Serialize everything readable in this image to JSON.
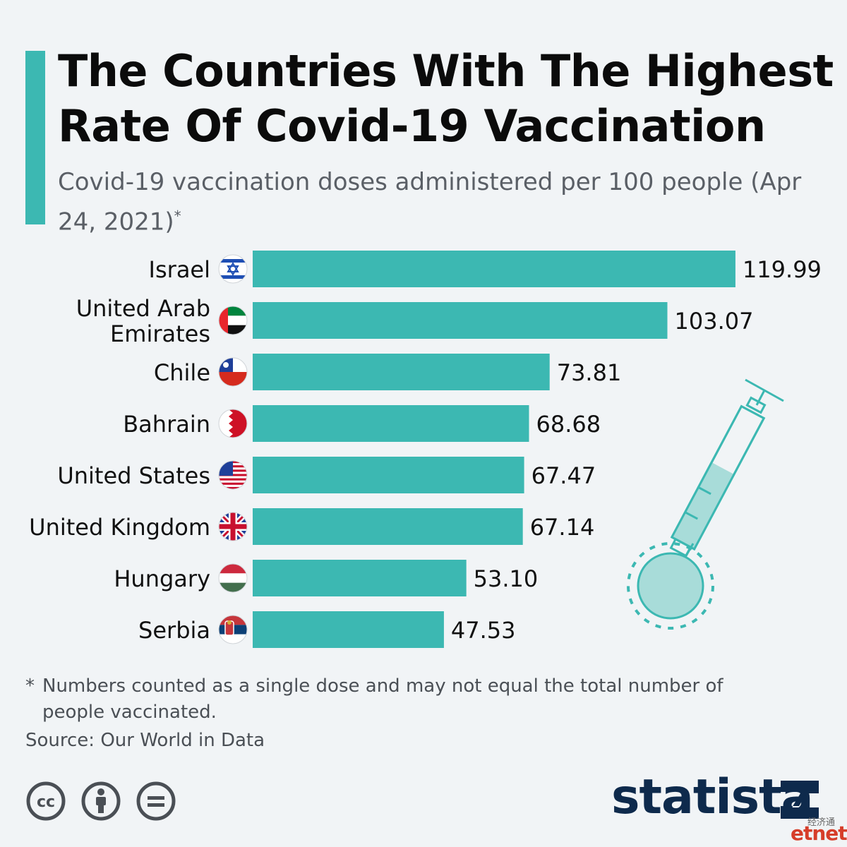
{
  "header": {
    "title": "The Countries With The Highest Rate Of Covid-19 Vaccination",
    "subtitle": "Covid-19 vaccination doses administered per 100 people (Apr 24, 2021)",
    "subtitle_marker": "*"
  },
  "chart_data": {
    "type": "bar",
    "orientation": "horizontal",
    "categories": [
      "Israel",
      "United Arab Emirates",
      "Chile",
      "Bahrain",
      "United States",
      "United Kingdom",
      "Hungary",
      "Serbia"
    ],
    "values": [
      119.99,
      103.07,
      73.81,
      68.68,
      67.47,
      67.14,
      53.1,
      47.53
    ],
    "value_labels": [
      "119.99",
      "103.07",
      "73.81",
      "68.68",
      "67.47",
      "67.14",
      "53.10",
      "47.53"
    ],
    "xlim": [
      0,
      120
    ],
    "grid": false,
    "bar_color": "#3cb8b2"
  },
  "footer": {
    "footnote_marker": "*",
    "footnote": "Numbers counted as a single dose and may not equal the total number of people vaccinated.",
    "source": "Source: Our World in Data",
    "brand": "statista",
    "watermark_cn": "经济通",
    "watermark": "etnet"
  },
  "colors": {
    "accent": "#3cb8b2",
    "brand": "#0e2a4c",
    "watermark": "#d63e2a"
  },
  "icons": [
    "cc-icon",
    "attribution-icon",
    "no-derivatives-icon",
    "syringe-illustration",
    "statista-logo-icon"
  ]
}
